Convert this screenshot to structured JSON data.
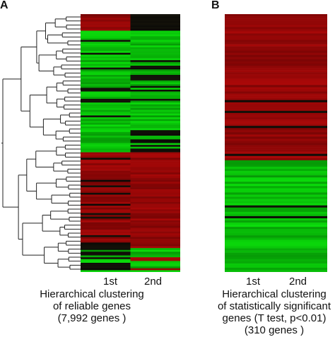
{
  "panel_a": {
    "letter": "A",
    "columns": [
      "1st",
      "2nd"
    ],
    "caption": [
      "Hierarchical clustering",
      "of reliable genes",
      "(7,992 genes )"
    ]
  },
  "panel_b": {
    "letter": "B",
    "columns": [
      "1st",
      "2nd"
    ],
    "caption": [
      "Hierarchical clustering",
      "of statistically significant",
      "genes (T test, p<0.01)",
      "(310 genes )"
    ]
  },
  "colors": {
    "red": "#a01818",
    "green": "#22c022",
    "black": "#000000"
  }
}
